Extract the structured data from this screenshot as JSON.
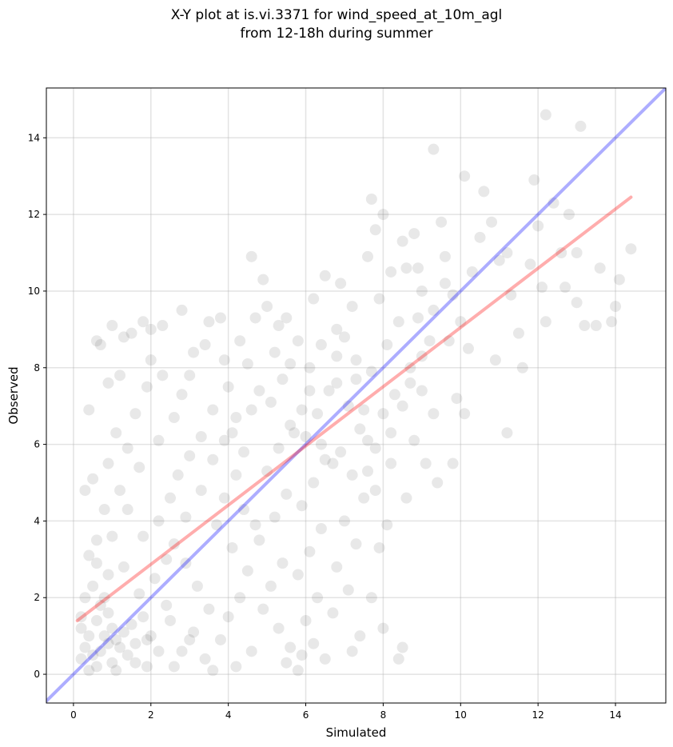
{
  "title_line1": "X-Y plot at is.vi.3371 for wind_speed_at_10m_agl",
  "title_line2": "from 12-18h during summer",
  "chart_data": {
    "type": "scatter",
    "xlabel": "Simulated",
    "ylabel": "Observed",
    "xlim": [
      -0.7,
      15.3
    ],
    "ylim": [
      -0.75,
      15.3
    ],
    "xticks": [
      0,
      2,
      4,
      6,
      8,
      10,
      12,
      14
    ],
    "yticks": [
      0,
      2,
      4,
      6,
      8,
      10,
      12,
      14
    ],
    "grid": true,
    "point_color": "#000000",
    "point_alpha": 0.09,
    "lines": [
      {
        "label": "1:1 line",
        "color": "#0000ff",
        "x": [
          -0.7,
          15.3
        ],
        "y": [
          -0.7,
          15.3
        ]
      },
      {
        "label": "regression fit",
        "color": "#ff0000",
        "x": [
          0.1,
          14.4
        ],
        "y": [
          1.4,
          12.45
        ]
      }
    ],
    "points": [
      [
        0.8,
        1.0
      ],
      [
        0.9,
        0.8
      ],
      [
        1.0,
        1.2
      ],
      [
        0.7,
        0.6
      ],
      [
        1.1,
        0.9
      ],
      [
        0.6,
        1.4
      ],
      [
        0.5,
        0.5
      ],
      [
        1.2,
        0.7
      ],
      [
        0.9,
        1.6
      ],
      [
        0.4,
        1.0
      ],
      [
        0.3,
        0.7
      ],
      [
        1.3,
        1.1
      ],
      [
        0.8,
        2.0
      ],
      [
        1.0,
        0.3
      ],
      [
        0.6,
        0.2
      ],
      [
        1.5,
        1.3
      ],
      [
        0.5,
        2.3
      ],
      [
        0.2,
        1.2
      ],
      [
        1.4,
        0.5
      ],
      [
        0.7,
        1.8
      ],
      [
        1.6,
        0.8
      ],
      [
        1.8,
        1.5
      ],
      [
        2.0,
        1.0
      ],
      [
        1.7,
        2.1
      ],
      [
        2.2,
        0.6
      ],
      [
        1.9,
        0.2
      ],
      [
        2.4,
        1.8
      ],
      [
        2.1,
        2.5
      ],
      [
        1.3,
        2.8
      ],
      [
        0.9,
        2.6
      ],
      [
        0.4,
        3.1
      ],
      [
        0.6,
        3.5
      ],
      [
        0.8,
        4.3
      ],
      [
        0.5,
        5.1
      ],
      [
        0.3,
        4.8
      ],
      [
        0.4,
        6.9
      ],
      [
        0.6,
        8.7
      ],
      [
        0.7,
        8.6
      ],
      [
        1.0,
        9.1
      ],
      [
        0.9,
        7.6
      ],
      [
        1.2,
        7.8
      ],
      [
        1.3,
        8.8
      ],
      [
        1.5,
        8.9
      ],
      [
        1.8,
        9.2
      ],
      [
        2.0,
        9.0
      ],
      [
        2.3,
        9.1
      ],
      [
        2.0,
        8.2
      ],
      [
        1.9,
        7.5
      ],
      [
        1.6,
        6.8
      ],
      [
        1.1,
        6.3
      ],
      [
        1.4,
        5.9
      ],
      [
        0.9,
        5.5
      ],
      [
        1.2,
        4.8
      ],
      [
        1.7,
        5.4
      ],
      [
        2.2,
        6.1
      ],
      [
        2.6,
        6.7
      ],
      [
        2.3,
        7.8
      ],
      [
        2.8,
        7.3
      ],
      [
        3.1,
        8.4
      ],
      [
        3.0,
        7.8
      ],
      [
        2.8,
        9.5
      ],
      [
        3.5,
        9.2
      ],
      [
        3.8,
        9.3
      ],
      [
        3.4,
        8.6
      ],
      [
        3.9,
        8.2
      ],
      [
        4.0,
        7.5
      ],
      [
        3.6,
        6.9
      ],
      [
        3.3,
        6.2
      ],
      [
        3.0,
        5.7
      ],
      [
        2.7,
        5.2
      ],
      [
        2.5,
        4.6
      ],
      [
        2.2,
        4.0
      ],
      [
        2.6,
        3.4
      ],
      [
        2.9,
        2.9
      ],
      [
        3.2,
        2.3
      ],
      [
        3.5,
        1.7
      ],
      [
        3.1,
        1.1
      ],
      [
        2.8,
        0.6
      ],
      [
        3.4,
        0.4
      ],
      [
        3.8,
        0.9
      ],
      [
        4.0,
        1.5
      ],
      [
        4.3,
        2.0
      ],
      [
        4.5,
        2.7
      ],
      [
        4.1,
        3.3
      ],
      [
        3.7,
        3.9
      ],
      [
        3.9,
        4.6
      ],
      [
        4.2,
        5.2
      ],
      [
        4.4,
        5.8
      ],
      [
        4.1,
        6.3
      ],
      [
        4.6,
        6.9
      ],
      [
        4.8,
        7.4
      ],
      [
        4.5,
        8.1
      ],
      [
        4.3,
        8.7
      ],
      [
        4.7,
        9.3
      ],
      [
        4.9,
        10.3
      ],
      [
        4.6,
        10.9
      ],
      [
        5.0,
        9.6
      ],
      [
        5.3,
        9.1
      ],
      [
        5.2,
        8.4
      ],
      [
        5.4,
        7.7
      ],
      [
        5.1,
        7.1
      ],
      [
        5.6,
        6.5
      ],
      [
        5.3,
        5.9
      ],
      [
        5.0,
        5.3
      ],
      [
        5.5,
        4.7
      ],
      [
        5.2,
        4.1
      ],
      [
        4.8,
        3.5
      ],
      [
        5.4,
        2.9
      ],
      [
        5.1,
        2.3
      ],
      [
        4.9,
        1.7
      ],
      [
        5.3,
        1.2
      ],
      [
        5.6,
        0.7
      ],
      [
        5.9,
        0.5
      ],
      [
        6.2,
        0.8
      ],
      [
        6.0,
        1.4
      ],
      [
        6.3,
        2.0
      ],
      [
        5.8,
        2.6
      ],
      [
        6.1,
        3.2
      ],
      [
        6.4,
        3.8
      ],
      [
        5.9,
        4.4
      ],
      [
        6.2,
        5.0
      ],
      [
        6.5,
        5.6
      ],
      [
        6.0,
        6.2
      ],
      [
        6.3,
        6.8
      ],
      [
        6.6,
        7.4
      ],
      [
        6.1,
        8.0
      ],
      [
        6.4,
        8.6
      ],
      [
        6.8,
        9.0
      ],
      [
        6.2,
        9.8
      ],
      [
        6.5,
        10.4
      ],
      [
        6.9,
        10.2
      ],
      [
        7.2,
        9.6
      ],
      [
        7.0,
        8.8
      ],
      [
        7.3,
        8.2
      ],
      [
        6.8,
        7.6
      ],
      [
        7.1,
        7.0
      ],
      [
        7.4,
        6.4
      ],
      [
        6.9,
        5.8
      ],
      [
        7.2,
        5.2
      ],
      [
        7.5,
        4.6
      ],
      [
        7.0,
        4.0
      ],
      [
        7.3,
        3.4
      ],
      [
        6.8,
        2.8
      ],
      [
        7.1,
        2.2
      ],
      [
        6.7,
        1.6
      ],
      [
        7.4,
        1.0
      ],
      [
        7.2,
        0.6
      ],
      [
        6.5,
        0.4
      ],
      [
        7.7,
        2.0
      ],
      [
        7.9,
        3.3
      ],
      [
        8.1,
        3.9
      ],
      [
        7.8,
        4.8
      ],
      [
        8.2,
        5.5
      ],
      [
        7.6,
        6.1
      ],
      [
        8.0,
        6.8
      ],
      [
        8.3,
        7.3
      ],
      [
        7.7,
        7.9
      ],
      [
        8.1,
        8.6
      ],
      [
        8.4,
        9.2
      ],
      [
        7.9,
        9.8
      ],
      [
        8.2,
        10.5
      ],
      [
        7.6,
        10.9
      ],
      [
        7.8,
        11.6
      ],
      [
        8.0,
        12.0
      ],
      [
        7.7,
        12.4
      ],
      [
        8.5,
        11.3
      ],
      [
        8.8,
        11.5
      ],
      [
        8.6,
        10.6
      ],
      [
        9.0,
        10.0
      ],
      [
        8.9,
        9.3
      ],
      [
        9.2,
        8.7
      ],
      [
        8.7,
        8.0
      ],
      [
        9.0,
        7.4
      ],
      [
        9.3,
        6.8
      ],
      [
        8.8,
        6.1
      ],
      [
        9.1,
        5.5
      ],
      [
        9.4,
        5.0
      ],
      [
        8.6,
        4.6
      ],
      [
        8.4,
        0.4
      ],
      [
        8.5,
        0.7
      ],
      [
        8.0,
        1.2
      ],
      [
        9.5,
        11.8
      ],
      [
        9.3,
        13.7
      ],
      [
        9.6,
        10.9
      ],
      [
        9.8,
        9.9
      ],
      [
        10.0,
        9.2
      ],
      [
        9.7,
        8.7
      ],
      [
        10.2,
        8.5
      ],
      [
        9.9,
        7.2
      ],
      [
        10.1,
        6.8
      ],
      [
        9.8,
        5.5
      ],
      [
        10.3,
        10.5
      ],
      [
        10.5,
        11.4
      ],
      [
        10.1,
        13.0
      ],
      [
        10.6,
        12.6
      ],
      [
        10.8,
        11.8
      ],
      [
        11.0,
        10.8
      ],
      [
        11.2,
        11.0
      ],
      [
        10.9,
        8.2
      ],
      [
        11.3,
        9.9
      ],
      [
        11.5,
        8.9
      ],
      [
        11.6,
        8.0
      ],
      [
        11.2,
        6.3
      ],
      [
        11.8,
        10.7
      ],
      [
        11.9,
        12.9
      ],
      [
        12.0,
        11.7
      ],
      [
        12.2,
        9.2
      ],
      [
        12.1,
        10.1
      ],
      [
        12.4,
        12.3
      ],
      [
        12.6,
        11.0
      ],
      [
        12.2,
        14.6
      ],
      [
        12.8,
        12.0
      ],
      [
        13.0,
        11.0
      ],
      [
        12.7,
        10.1
      ],
      [
        13.0,
        9.7
      ],
      [
        13.2,
        9.1
      ],
      [
        13.1,
        14.3
      ],
      [
        13.5,
        9.1
      ],
      [
        13.6,
        10.6
      ],
      [
        13.9,
        9.2
      ],
      [
        14.1,
        10.3
      ],
      [
        14.4,
        11.1
      ],
      [
        14.0,
        9.6
      ],
      [
        0.2,
        0.4
      ],
      [
        0.4,
        0.1
      ],
      [
        1.1,
        0.1
      ],
      [
        1.6,
        0.3
      ],
      [
        2.6,
        0.2
      ],
      [
        3.6,
        0.1
      ],
      [
        4.2,
        0.2
      ],
      [
        4.6,
        0.6
      ],
      [
        5.5,
        0.3
      ],
      [
        5.8,
        0.1
      ],
      [
        0.3,
        2.0
      ],
      [
        0.2,
        1.5
      ],
      [
        0.6,
        2.9
      ],
      [
        1.0,
        3.6
      ],
      [
        1.4,
        4.3
      ],
      [
        1.8,
        3.6
      ],
      [
        2.4,
        3.0
      ],
      [
        2.9,
        4.1
      ],
      [
        3.3,
        4.8
      ],
      [
        3.6,
        5.6
      ],
      [
        3.9,
        6.1
      ],
      [
        4.2,
        6.7
      ],
      [
        4.4,
        4.3
      ],
      [
        4.7,
        3.9
      ],
      [
        3.0,
        0.9
      ],
      [
        2.5,
        1.4
      ],
      [
        1.9,
        0.9
      ],
      [
        5.7,
        6.3
      ],
      [
        5.9,
        6.9
      ],
      [
        6.1,
        7.4
      ],
      [
        6.4,
        6.0
      ],
      [
        6.7,
        5.5
      ],
      [
        5.6,
        8.1
      ],
      [
        5.8,
        8.7
      ],
      [
        5.5,
        9.3
      ],
      [
        6.8,
        8.3
      ],
      [
        7.3,
        7.7
      ],
      [
        7.5,
        6.9
      ],
      [
        7.6,
        5.3
      ],
      [
        7.8,
        5.9
      ],
      [
        8.2,
        6.3
      ],
      [
        8.5,
        7.0
      ],
      [
        8.7,
        7.6
      ],
      [
        9.0,
        8.3
      ],
      [
        9.3,
        9.5
      ],
      [
        9.6,
        10.2
      ],
      [
        8.9,
        10.6
      ]
    ]
  }
}
